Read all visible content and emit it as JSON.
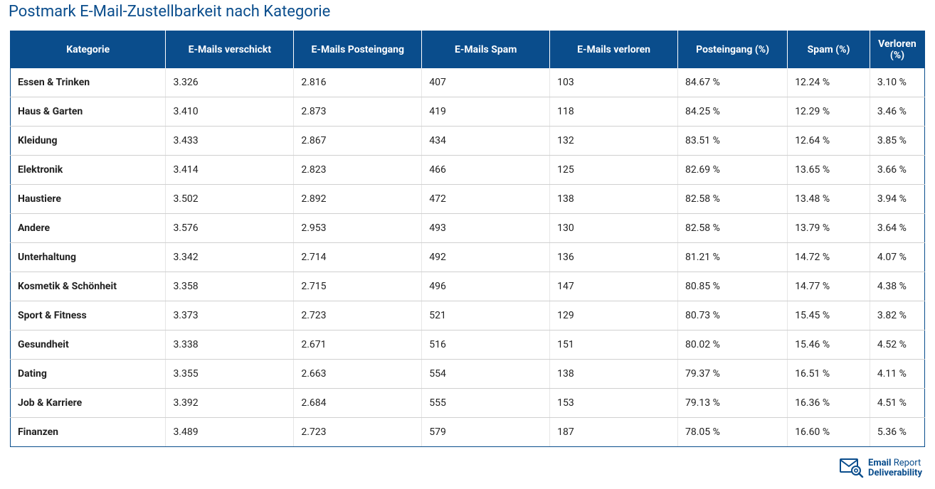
{
  "title": "Postmark E-Mail-Zustellbarkeit nach Kategorie",
  "columns": [
    "Kategorie",
    "E-Mails verschickt",
    "E-Mails Posteingang",
    "E-Mails Spam",
    "E-Mails verloren",
    "Posteingang (%)",
    "Spam (%)",
    "Verloren (%)"
  ],
  "rows": [
    [
      "Essen & Trinken",
      "3.326",
      "2.816",
      "407",
      "103",
      "84.67 %",
      "12.24 %",
      "3.10 %"
    ],
    [
      "Haus & Garten",
      "3.410",
      "2.873",
      "419",
      "118",
      "84.25 %",
      "12.29 %",
      "3.46 %"
    ],
    [
      "Kleidung",
      "3.433",
      "2.867",
      "434",
      "132",
      "83.51 %",
      "12.64 %",
      "3.85 %"
    ],
    [
      "Elektronik",
      "3.414",
      "2.823",
      "466",
      "125",
      "82.69 %",
      "13.65 %",
      "3.66 %"
    ],
    [
      "Haustiere",
      "3.502",
      "2.892",
      "472",
      "138",
      "82.58 %",
      "13.48 %",
      "3.94 %"
    ],
    [
      "Andere",
      "3.576",
      "2.953",
      "493",
      "130",
      "82.58 %",
      "13.79 %",
      "3.64 %"
    ],
    [
      "Unterhaltung",
      "3.342",
      "2.714",
      "492",
      "136",
      "81.21 %",
      "14.72 %",
      "4.07 %"
    ],
    [
      "Kosmetik & Schönheit",
      "3.358",
      "2.715",
      "496",
      "147",
      "80.85 %",
      "14.77 %",
      "4.38 %"
    ],
    [
      "Sport & Fitness",
      "3.373",
      "2.723",
      "521",
      "129",
      "80.73 %",
      "15.45 %",
      "3.82 %"
    ],
    [
      "Gesundheit",
      "3.338",
      "2.671",
      "516",
      "151",
      "80.02 %",
      "15.46 %",
      "4.52 %"
    ],
    [
      "Dating",
      "3.355",
      "2.663",
      "554",
      "138",
      "79.37 %",
      "16.51 %",
      "4.11 %"
    ],
    [
      "Job & Karriere",
      "3.392",
      "2.684",
      "555",
      "153",
      "79.13 %",
      "16.36 %",
      "4.51 %"
    ],
    [
      "Finanzen",
      "3.489",
      "2.723",
      "579",
      "187",
      "78.05 %",
      "16.60 %",
      "5.36 %"
    ]
  ],
  "colors": {
    "header_bg": "#0a4d8c",
    "header_fg": "#ffffff",
    "title_color": "#0a4d8c",
    "row_border": "#d0d0d0",
    "cell_border": "#e6e6e6",
    "text": "#222222",
    "background": "#ffffff"
  },
  "logo": {
    "line1_a": "Email",
    "line1_b": "Report",
    "line2": "Deliverability",
    "icon_color": "#0a4d8c"
  }
}
